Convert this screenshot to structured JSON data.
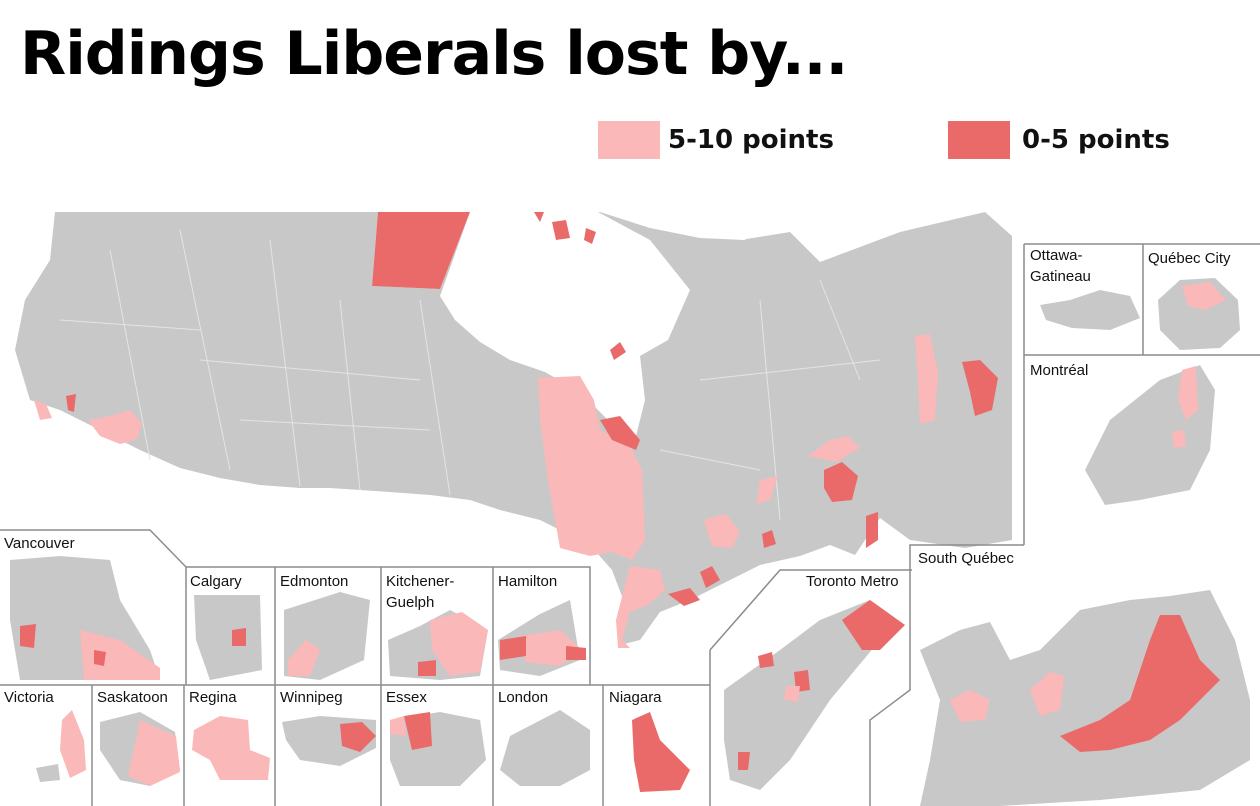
{
  "title": "Ridings Liberals lost by...",
  "colors": {
    "land": "#c8c8c8",
    "border": "#e4e4e4",
    "frame": "#8c8c8c",
    "margin_5_10": "#fbb8b8",
    "margin_0_5": "#ea6a6a"
  },
  "legend": [
    {
      "label": "5-10 points",
      "color": "#fbb8b8"
    },
    {
      "label": "0-5 points",
      "color": "#ea6a6a"
    }
  ],
  "insets": {
    "ottawa_gatineau": "Ottawa-\nGatineau",
    "quebec_city": "Québec City",
    "montreal": "Montréal",
    "vancouver": "Vancouver",
    "calgary": "Calgary",
    "edmonton": "Edmonton",
    "kitchener_guelph": "Kitchener-\nGuelph",
    "hamilton": "Hamilton",
    "toronto_metro": "Toronto Metro",
    "south_quebec": "South Québec",
    "victoria": "Victoria",
    "saskatoon": "Saskatoon",
    "regina": "Regina",
    "winnipeg": "Winnipeg",
    "essex": "Essex",
    "london": "London",
    "niagara": "Niagara"
  }
}
